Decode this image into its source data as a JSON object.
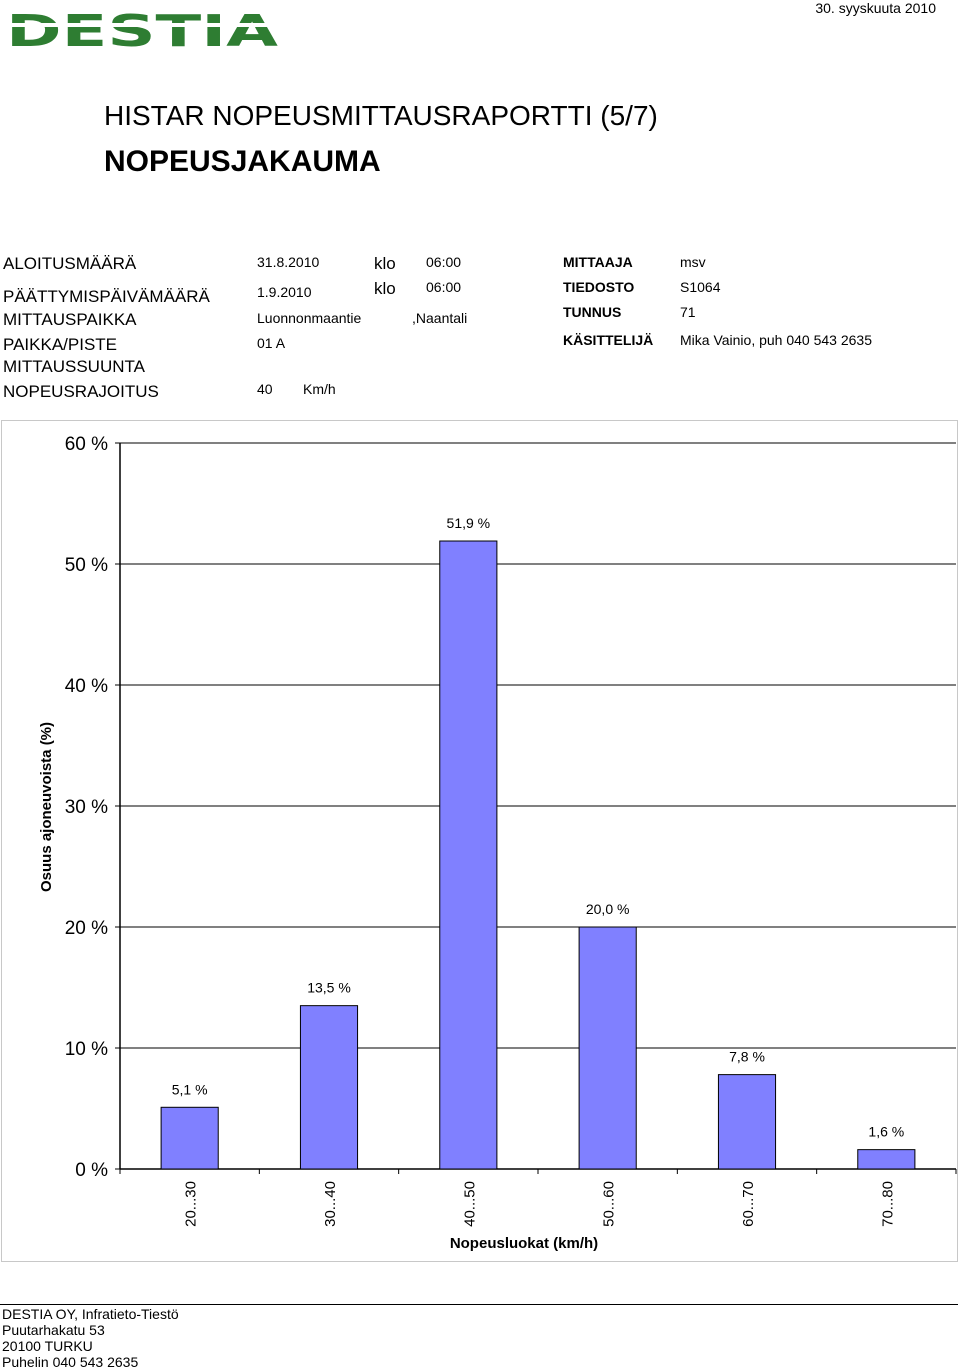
{
  "header": {
    "logo_text": "DESTIA",
    "logo_color": "#2e7d32",
    "date": "30. syyskuuta 2010",
    "title": "HISTAR NOPEUSMITTAUSRAPORTTI (5/7)",
    "subtitle": "NOPEUSJAKAUMA"
  },
  "info": {
    "start_label": "ALOITUSMÄÄRÄ",
    "start_date": "31.8.2010",
    "start_klo": "klo",
    "start_time": "06:00",
    "end_label": "PÄÄTTYMISPÄIVÄMÄÄRÄ",
    "end_date": "1.9.2010",
    "end_klo": "klo",
    "end_time": "06:00",
    "place_label": "MITTAUSPAIKKA",
    "place_value": "Luonnonmaantie",
    "place_city": ",Naantali",
    "point_label": "PAIKKA/PISTE",
    "point_value": "01 A",
    "direction_label": "MITTAUSSUUNTA",
    "limit_label": "NOPEUSRAJOITUS",
    "limit_value": "40",
    "limit_unit": "Km/h",
    "measurer_label": "MITTAAJA",
    "measurer_value": "msv",
    "file_label": "TIEDOSTO",
    "file_value": "S1064",
    "id_label": "TUNNUS",
    "id_value": "71",
    "handler_label": "KÄSITTELIJÄ",
    "handler_value": "Mika Vainio, puh 040 543 2635"
  },
  "chart_data": {
    "type": "bar",
    "categories": [
      "20...30",
      "30...40",
      "40...50",
      "50...60",
      "60...70",
      "70...80"
    ],
    "values": [
      5.1,
      13.5,
      51.9,
      20.0,
      7.8,
      1.6
    ],
    "data_labels": [
      "5,1 %",
      "13,5 %",
      "51,9 %",
      "20,0 %",
      "7,8 %",
      "1,6 %"
    ],
    "ylim": [
      0,
      60
    ],
    "yticks": [
      0,
      10,
      20,
      30,
      40,
      50,
      60
    ],
    "ytick_labels": [
      "0 %",
      "10 %",
      "20 %",
      "30 %",
      "40 %",
      "50 %",
      "60 %"
    ],
    "xlabel": "Nopeusluokat (km/h)",
    "ylabel": "Osuus ajoneuvoista (%)",
    "bar_color": "#8080ff",
    "grid": true
  },
  "footer": {
    "company": "DESTIA OY, Infratieto-Tiestö",
    "street": "Puutarhakatu 53",
    "city": "20100 TURKU",
    "phone": "Puhelin 040 543 2635"
  }
}
